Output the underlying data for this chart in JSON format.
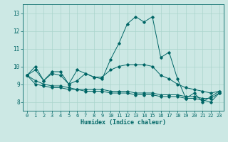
{
  "xlabel": "Humidex (Indice chaleur)",
  "ylabel": "",
  "background_color": "#cce8e4",
  "grid_color": "#aad4cc",
  "line_color": "#006666",
  "xlim": [
    -0.5,
    23.5
  ],
  "ylim": [
    7.5,
    13.5
  ],
  "xticks": [
    0,
    1,
    2,
    3,
    4,
    5,
    6,
    7,
    8,
    9,
    10,
    11,
    12,
    13,
    14,
    15,
    16,
    17,
    18,
    19,
    20,
    21,
    22,
    23
  ],
  "yticks": [
    8,
    9,
    10,
    11,
    12,
    13
  ],
  "series": [
    {
      "x": [
        0,
        1,
        2,
        3,
        4,
        5,
        6,
        7,
        8,
        9,
        10,
        11,
        12,
        13,
        14,
        15,
        16,
        17,
        18,
        19,
        20,
        21,
        22,
        23
      ],
      "y": [
        9.5,
        10.0,
        9.2,
        9.7,
        9.7,
        9.0,
        9.8,
        9.6,
        9.4,
        9.3,
        10.4,
        11.3,
        12.4,
        12.8,
        12.5,
        12.8,
        10.5,
        10.8,
        9.3,
        8.2,
        8.5,
        8.0,
        8.3,
        8.6
      ]
    },
    {
      "x": [
        0,
        1,
        2,
        3,
        4,
        5,
        6,
        7,
        8,
        9,
        10,
        11,
        12,
        13,
        14,
        15,
        16,
        17,
        18,
        19,
        20,
        21,
        22,
        23
      ],
      "y": [
        9.5,
        9.8,
        9.2,
        9.6,
        9.5,
        9.0,
        9.2,
        9.6,
        9.4,
        9.4,
        9.8,
        10.0,
        10.1,
        10.1,
        10.1,
        10.0,
        9.5,
        9.3,
        9.0,
        8.8,
        8.7,
        8.6,
        8.5,
        8.6
      ]
    },
    {
      "x": [
        0,
        1,
        2,
        3,
        4,
        5,
        6,
        7,
        8,
        9,
        10,
        11,
        12,
        13,
        14,
        15,
        16,
        17,
        18,
        19,
        20,
        21,
        22,
        23
      ],
      "y": [
        9.5,
        9.2,
        9.0,
        8.9,
        8.9,
        8.8,
        8.7,
        8.7,
        8.7,
        8.7,
        8.6,
        8.6,
        8.6,
        8.5,
        8.5,
        8.5,
        8.4,
        8.4,
        8.4,
        8.3,
        8.3,
        8.2,
        8.2,
        8.5
      ]
    },
    {
      "x": [
        0,
        1,
        2,
        3,
        4,
        5,
        6,
        7,
        8,
        9,
        10,
        11,
        12,
        13,
        14,
        15,
        16,
        17,
        18,
        19,
        20,
        21,
        22,
        23
      ],
      "y": [
        9.5,
        9.0,
        8.9,
        8.8,
        8.8,
        8.7,
        8.7,
        8.6,
        8.6,
        8.6,
        8.5,
        8.5,
        8.5,
        8.4,
        8.4,
        8.4,
        8.3,
        8.3,
        8.3,
        8.2,
        8.2,
        8.1,
        8.0,
        8.5
      ]
    }
  ]
}
